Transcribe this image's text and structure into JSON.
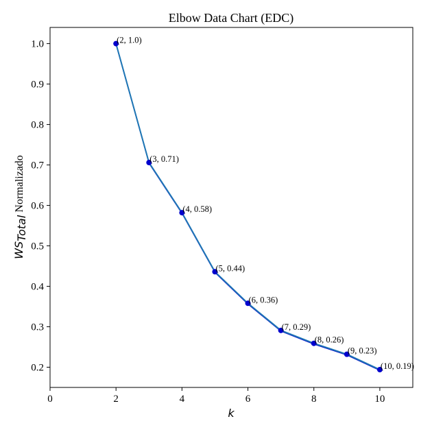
{
  "chart_data": {
    "type": "line",
    "title": "Elbow Data Chart (EDC)",
    "xlabel": "k",
    "ylabel_main": "WS",
    "ylabel_sub": "Total",
    "ylabel_rest": " Normalizado",
    "xlim": [
      0,
      11
    ],
    "ylim": [
      0.15,
      1.04
    ],
    "xticks": [
      0,
      2,
      4,
      6,
      8,
      10
    ],
    "xtick_labels": [
      "0",
      "2",
      "4",
      "6",
      "8",
      "10"
    ],
    "yticks": [
      0.2,
      0.3,
      0.4,
      0.5,
      0.6,
      0.7,
      0.8,
      0.9,
      1.0
    ],
    "ytick_labels": [
      "0.2",
      "0.3",
      "0.4",
      "0.5",
      "0.6",
      "0.7",
      "0.8",
      "0.9",
      "1.0"
    ],
    "grid": false,
    "line_color": "#1f77b4",
    "marker_color": "#0000cd",
    "points": [
      {
        "x": 2,
        "y": 1.0,
        "label": "(2, 1.0)"
      },
      {
        "x": 3,
        "y": 0.706,
        "label": "(3, 0.71)"
      },
      {
        "x": 4,
        "y": 0.582,
        "label": "(4, 0.58)"
      },
      {
        "x": 5,
        "y": 0.436,
        "label": "(5, 0.44)"
      },
      {
        "x": 6,
        "y": 0.358,
        "label": "(6, 0.36)"
      },
      {
        "x": 7,
        "y": 0.291,
        "label": "(7, 0.29)"
      },
      {
        "x": 8,
        "y": 0.259,
        "label": "(8, 0.26)"
      },
      {
        "x": 9,
        "y": 0.232,
        "label": "(9, 0.23)"
      },
      {
        "x": 10,
        "y": 0.194,
        "label": "(10, 0.19)"
      }
    ]
  }
}
